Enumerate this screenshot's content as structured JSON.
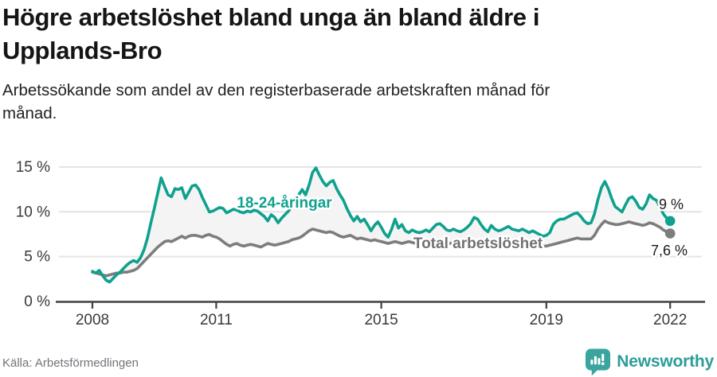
{
  "header": {
    "title_line1": "Högre arbetslöshet bland unga än bland äldre i",
    "title_line2": "Upplands-Bro",
    "subtitle_line1": "Arbetssökande som andel av den registerbaserade arbetskraften månad för",
    "subtitle_line2": "månad."
  },
  "footer": {
    "source": "Källa: Arbetsförmedlingen",
    "brand": "Newsworthy"
  },
  "colors": {
    "accent_teal": "#0fa18e",
    "line_gray": "#7d7d7d",
    "brand_teal": "#2b9e98",
    "area_fill": "#f4f4f4",
    "grid": "#e4e4e4",
    "axis": "#3f3f3f"
  },
  "chart_data": {
    "type": "line",
    "x_start_year": 2008,
    "points_per_year": 12,
    "x_tick_labels": [
      "2008",
      "2011",
      "2015",
      "2019",
      "2022"
    ],
    "y_tick_labels": [
      "0 %",
      "5 %",
      "10 %",
      "15 %"
    ],
    "ylim": [
      0,
      16.8
    ],
    "grid": true,
    "legend_position": "inline-labels",
    "series": [
      {
        "name": "18-24-åringar",
        "color": "#0fa18e",
        "end_label": "9 %",
        "values": [
          3.4,
          3.2,
          3.5,
          2.9,
          2.4,
          2.2,
          2.6,
          3.0,
          3.3,
          3.7,
          4.1,
          4.4,
          4.6,
          4.4,
          4.9,
          5.8,
          7.1,
          8.8,
          10.4,
          12.1,
          13.8,
          12.8,
          11.9,
          11.7,
          12.6,
          12.5,
          12.7,
          11.5,
          12.2,
          12.9,
          13.0,
          12.5,
          11.6,
          10.8,
          10.0,
          10.1,
          10.3,
          10.5,
          10.4,
          9.9,
          10.1,
          10.3,
          10.2,
          10.0,
          9.9,
          10.1,
          10.0,
          10.2,
          10.1,
          9.8,
          9.5,
          9.0,
          9.7,
          9.4,
          8.8,
          9.3,
          9.7,
          10.1,
          10.6,
          11.2,
          11.9,
          12.5,
          11.9,
          13.0,
          14.4,
          14.9,
          14.1,
          13.4,
          12.9,
          13.3,
          13.5,
          12.6,
          11.9,
          11.3,
          10.4,
          9.6,
          9.0,
          9.5,
          8.9,
          9.2,
          8.6,
          7.9,
          8.5,
          8.9,
          8.3,
          7.6,
          7.2,
          8.1,
          9.2,
          8.2,
          8.6,
          7.9,
          7.7,
          8.0,
          7.8,
          7.7,
          7.8,
          8.0,
          7.8,
          8.2,
          8.6,
          8.7,
          8.4,
          8.0,
          7.9,
          8.1,
          7.9,
          7.8,
          8.0,
          8.3,
          8.7,
          9.4,
          9.2,
          8.6,
          8.1,
          7.8,
          8.5,
          8.1,
          7.9,
          8.0,
          8.2,
          8.4,
          8.1,
          8.0,
          7.9,
          8.1,
          7.9,
          7.7,
          7.9,
          7.7,
          7.5,
          7.3,
          7.4,
          7.7,
          8.6,
          9.0,
          9.2,
          9.2,
          9.4,
          9.6,
          9.8,
          9.9,
          9.5,
          9.0,
          8.7,
          8.8,
          9.8,
          11.4,
          12.7,
          13.4,
          12.6,
          11.5,
          10.6,
          10.3,
          10.0,
          10.8,
          11.5,
          11.7,
          11.2,
          10.5,
          10.3,
          10.9,
          11.9,
          11.5,
          11.3,
          10.6,
          9.8,
          9.3,
          9.0
        ]
      },
      {
        "name": "Total arbetslöshet",
        "color": "#7d7d7d",
        "end_label": "7,6 %",
        "values": [
          3.3,
          3.2,
          3.1,
          3.0,
          2.9,
          3.0,
          3.1,
          3.2,
          3.2,
          3.3,
          3.3,
          3.4,
          3.5,
          3.7,
          4.1,
          4.5,
          4.9,
          5.3,
          5.7,
          6.1,
          6.4,
          6.7,
          6.8,
          6.7,
          6.9,
          7.1,
          7.3,
          7.1,
          7.3,
          7.4,
          7.4,
          7.3,
          7.2,
          7.4,
          7.5,
          7.3,
          7.2,
          7.0,
          6.7,
          6.4,
          6.2,
          6.4,
          6.5,
          6.3,
          6.2,
          6.3,
          6.4,
          6.3,
          6.2,
          6.1,
          6.3,
          6.5,
          6.4,
          6.3,
          6.4,
          6.5,
          6.6,
          6.7,
          6.9,
          7.0,
          7.1,
          7.3,
          7.6,
          7.9,
          8.1,
          8.0,
          7.9,
          7.8,
          7.7,
          7.8,
          7.7,
          7.5,
          7.3,
          7.2,
          7.3,
          7.4,
          7.2,
          7.0,
          7.1,
          7.0,
          6.9,
          6.8,
          6.9,
          6.8,
          6.7,
          6.6,
          6.5,
          6.6,
          6.7,
          6.6,
          6.5,
          6.6,
          6.7,
          6.6,
          6.5,
          6.6,
          6.7,
          6.8,
          6.7,
          6.6,
          6.7,
          6.8,
          6.7,
          6.6,
          6.5,
          6.6,
          6.7,
          6.6,
          6.6,
          6.7,
          6.8,
          6.7,
          6.6,
          6.7,
          6.8,
          6.7,
          6.6,
          6.5,
          6.6,
          6.5,
          6.5,
          6.6,
          6.5,
          6.4,
          6.5,
          6.4,
          6.3,
          6.4,
          6.3,
          6.2,
          6.3,
          6.2,
          6.2,
          6.3,
          6.4,
          6.5,
          6.6,
          6.7,
          6.8,
          6.9,
          7.0,
          7.1,
          7.0,
          7.0,
          7.0,
          7.0,
          7.4,
          8.1,
          8.6,
          9.0,
          8.8,
          8.7,
          8.6,
          8.6,
          8.7,
          8.8,
          8.9,
          8.8,
          8.7,
          8.6,
          8.5,
          8.6,
          8.8,
          8.7,
          8.5,
          8.3,
          8.0,
          7.8,
          7.6
        ]
      }
    ]
  }
}
